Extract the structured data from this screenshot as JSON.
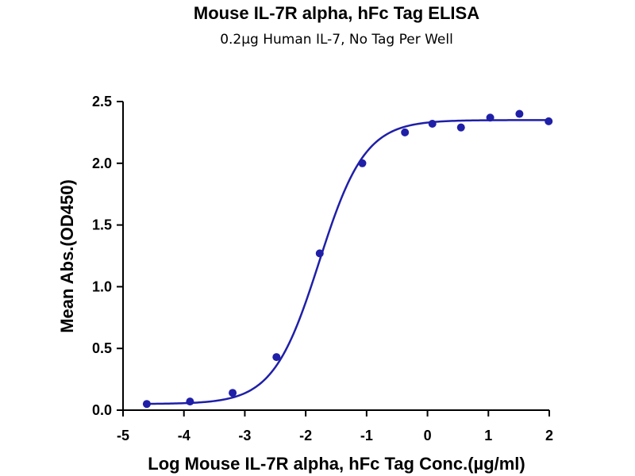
{
  "chart_data": {
    "type": "scatter",
    "title": "Mouse IL-7R alpha, hFc Tag ELISA",
    "subtitle": "0.2µg Human IL-7, No Tag Per Well",
    "xlabel": "Log Mouse IL-7R alpha, hFc Tag Conc.(µg/ml)",
    "ylabel": "Mean Abs.(OD450)",
    "xlim": [
      -5,
      2
    ],
    "ylim": [
      0,
      2.5
    ],
    "x_ticks": [
      -5,
      -4,
      -3,
      -2,
      -1,
      0,
      1,
      2
    ],
    "x_tick_labels": [
      "-5",
      "-4",
      "-3",
      "-2",
      "-1",
      "0",
      "1",
      "2"
    ],
    "y_ticks": [
      0,
      0.5,
      1,
      1.5,
      2,
      2.5
    ],
    "y_tick_labels": [
      "0.0",
      "0.5",
      "1.0",
      "1.5",
      "2.0",
      "2.5"
    ],
    "grid": false,
    "legend": "none",
    "series": [
      {
        "points": [
          {
            "x": -4.61,
            "y": 0.05
          },
          {
            "x": -3.9,
            "y": 0.07
          },
          {
            "x": -3.2,
            "y": 0.14
          },
          {
            "x": -2.48,
            "y": 0.43
          },
          {
            "x": -1.77,
            "y": 1.27
          },
          {
            "x": -1.07,
            "y": 2.0
          },
          {
            "x": -0.37,
            "y": 2.25
          },
          {
            "x": 0.08,
            "y": 2.32
          },
          {
            "x": 0.55,
            "y": 2.29
          },
          {
            "x": 1.03,
            "y": 2.37
          },
          {
            "x": 1.51,
            "y": 2.4
          },
          {
            "x": 1.99,
            "y": 2.34
          }
        ],
        "fit": {
          "model": "4PL",
          "bottom": 0.05,
          "top": 2.35,
          "logEC50": -1.78,
          "hill": 1.15
        },
        "color": "#1f1fa8"
      }
    ]
  }
}
